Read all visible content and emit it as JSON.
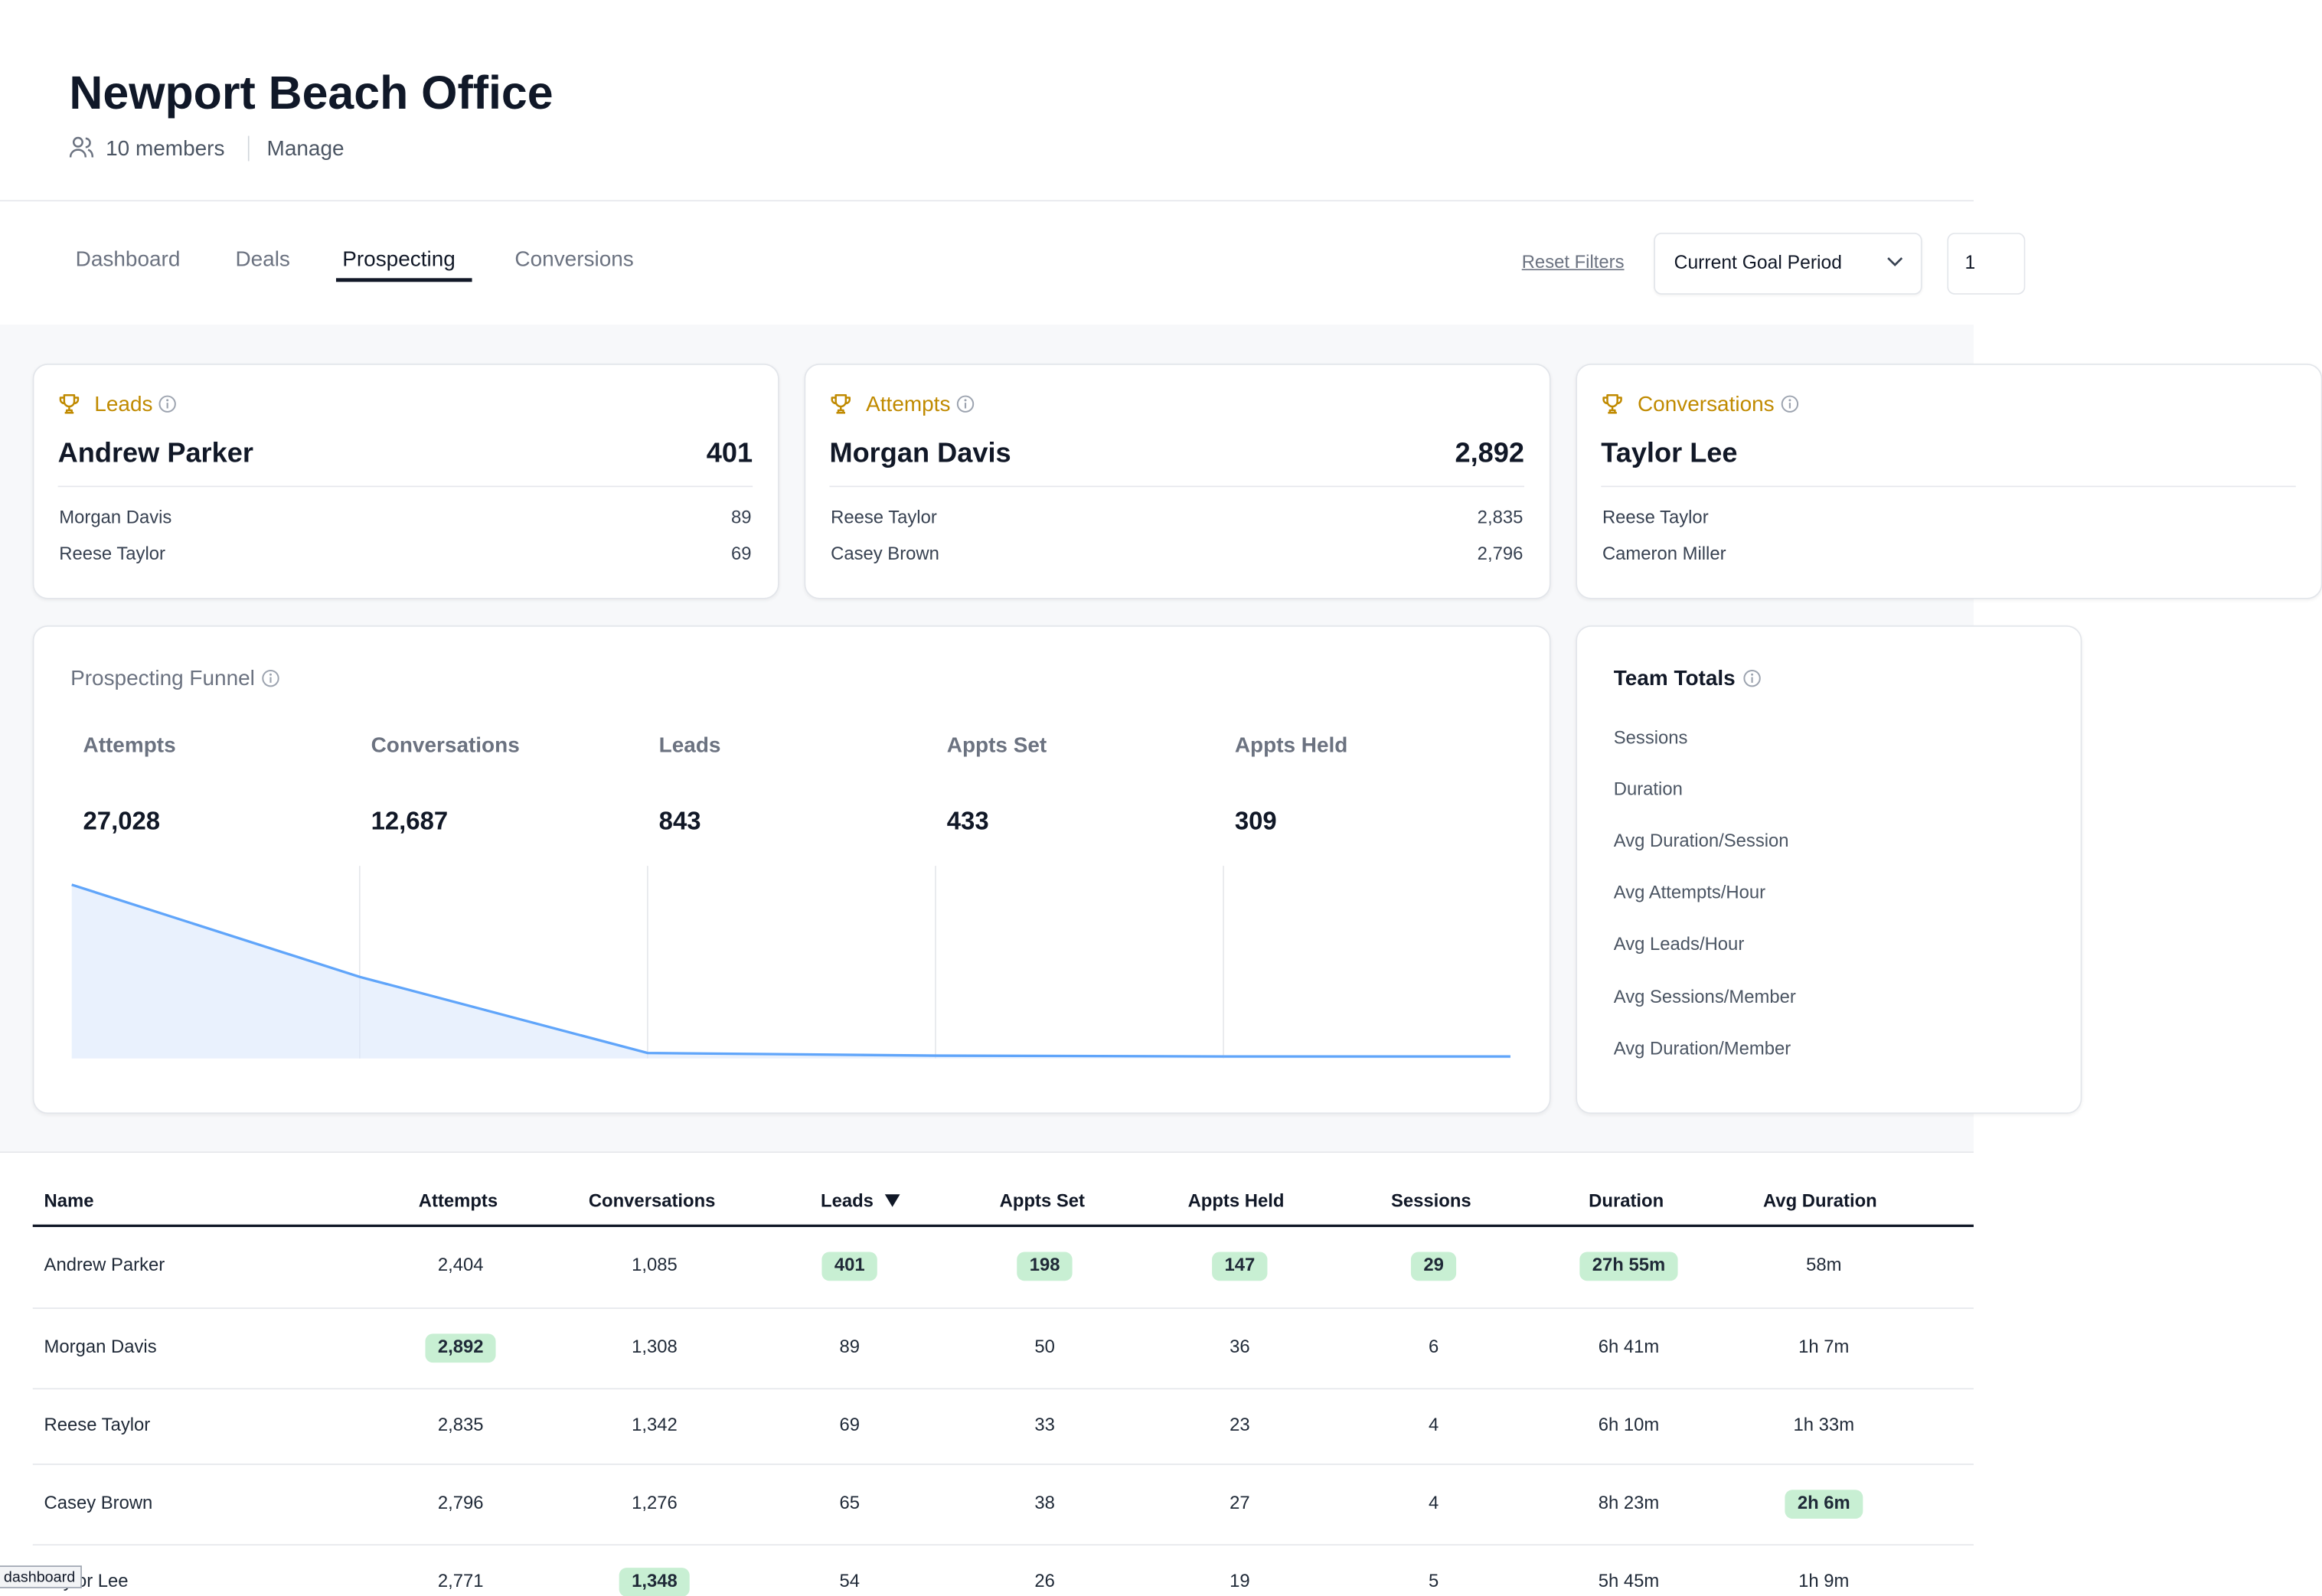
{
  "header": {
    "title": "Newport Beach Office",
    "members": "10 members",
    "manage": "Manage"
  },
  "tabs": {
    "items": [
      "Dashboard",
      "Deals",
      "Prospecting",
      "Conversions"
    ],
    "active": "Prospecting",
    "reset": "Reset Filters",
    "period": "Current Goal Period",
    "extra": "1"
  },
  "leaderboards": [
    {
      "label": "Leads",
      "leader": "Andrew Parker",
      "leader_value": "401",
      "others": [
        {
          "name": "Morgan Davis",
          "value": "89"
        },
        {
          "name": "Reese Taylor",
          "value": "69"
        }
      ]
    },
    {
      "label": "Attempts",
      "leader": "Morgan Davis",
      "leader_value": "2,892",
      "others": [
        {
          "name": "Reese Taylor",
          "value": "2,835"
        },
        {
          "name": "Casey Brown",
          "value": "2,796"
        }
      ]
    },
    {
      "label": "Conversations",
      "leader": "Taylor Lee",
      "others": [
        {
          "name": "Reese Taylor"
        },
        {
          "name": "Cameron Miller"
        }
      ]
    }
  ],
  "funnel": {
    "title": "Prospecting Funnel",
    "stages": [
      {
        "label": "Attempts",
        "value": 27028,
        "value_label": "27,028"
      },
      {
        "label": "Conversations",
        "value": 12687,
        "value_label": "12,687"
      },
      {
        "label": "Leads",
        "value": 843,
        "value_label": "843"
      },
      {
        "label": "Appts Set",
        "value": 433,
        "value_label": "433"
      },
      {
        "label": "Appts Held",
        "value": 309,
        "value_label": "309"
      }
    ]
  },
  "team_totals": {
    "title": "Team Totals",
    "rows": [
      "Sessions",
      "Duration",
      "Avg Duration/Session",
      "Avg Attempts/Hour",
      "Avg Leads/Hour",
      "Avg Sessions/Member",
      "Avg Duration/Member"
    ]
  },
  "table": {
    "columns": [
      "Name",
      "Attempts",
      "Conversations",
      "Leads",
      "Appts Set",
      "Appts Held",
      "Sessions",
      "Duration",
      "Avg Duration"
    ],
    "sort_column": 3,
    "rows": [
      {
        "cells": [
          "Andrew Parker",
          "2,404",
          "1,085",
          "401",
          "198",
          "147",
          "29",
          "27h 55m",
          "58m"
        ],
        "highlight": [
          3,
          4,
          5,
          6,
          7
        ]
      },
      {
        "cells": [
          "Morgan Davis",
          "2,892",
          "1,308",
          "89",
          "50",
          "36",
          "6",
          "6h 41m",
          "1h 7m"
        ],
        "highlight": [
          1
        ]
      },
      {
        "cells": [
          "Reese Taylor",
          "2,835",
          "1,342",
          "69",
          "33",
          "23",
          "4",
          "6h 10m",
          "1h 33m"
        ],
        "highlight": []
      },
      {
        "cells": [
          "Casey Brown",
          "2,796",
          "1,276",
          "65",
          "38",
          "27",
          "4",
          "8h 23m",
          "2h 6m"
        ],
        "highlight": [
          8
        ]
      },
      {
        "cells": [
          "Taylor Lee",
          "2,771",
          "1,348",
          "54",
          "26",
          "19",
          "5",
          "5h 45m",
          "1h 9m"
        ],
        "highlight": [
          2
        ]
      }
    ]
  },
  "tooltip": "dashboard"
}
